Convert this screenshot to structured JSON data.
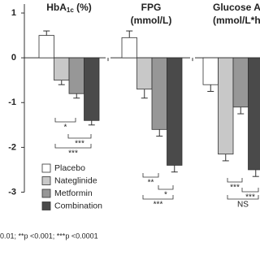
{
  "chart_data": {
    "type": "bar",
    "panel_titles": [
      [
        "HbA",
        "1c",
        " (%)"
      ],
      [
        "FPG",
        "(mmol/L)"
      ],
      [
        "Glucose AU",
        "(mmol/L*h"
      ]
    ],
    "series": [
      {
        "name": "Placebo",
        "color": "#ffffff",
        "values": [
          0.5,
          0.45,
          -0.6
        ],
        "errors": [
          0.1,
          0.15,
          0.15
        ]
      },
      {
        "name": "Nateglinide",
        "color": "#c8c8c8",
        "values": [
          -0.5,
          -0.7,
          -2.15
        ],
        "errors": [
          0.1,
          0.2,
          0.15
        ]
      },
      {
        "name": "Metformin",
        "color": "#979797",
        "values": [
          -0.8,
          -1.6,
          -1.1
        ],
        "errors": [
          0.1,
          0.15,
          0.15
        ]
      },
      {
        "name": "Combination",
        "color": "#4a4a4a",
        "values": [
          -1.4,
          -2.4,
          -2.5
        ],
        "errors": [
          0.1,
          0.15,
          0.15
        ]
      }
    ],
    "ylim": [
      -3,
      1.2
    ],
    "yticks": [
      -3,
      -2,
      -1,
      0,
      1
    ],
    "annotations": [
      [
        "*",
        "***",
        "***"
      ],
      [
        "**",
        "*",
        "***"
      ],
      [
        "***",
        "***",
        "NS"
      ]
    ],
    "footnote": "0.01; **p <0.001; ***p <0.0001"
  }
}
